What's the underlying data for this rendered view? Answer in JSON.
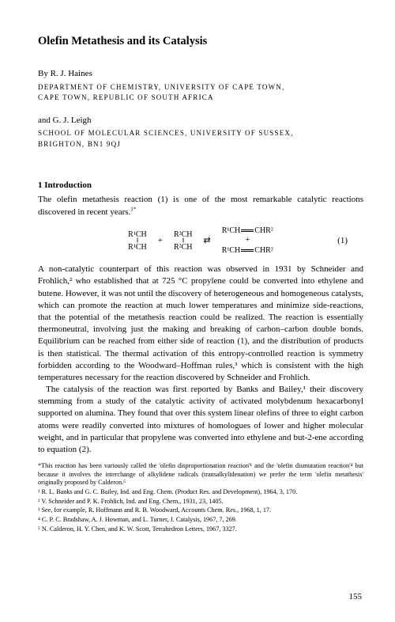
{
  "title": "Olefin Metathesis and its Catalysis",
  "authors": [
    {
      "byline": "By R. J. Haines",
      "affiliation_lines": [
        "DEPARTMENT OF CHEMISTRY, UNIVERSITY OF CAPE TOWN,",
        "CAPE TOWN, REPUBLIC OF SOUTH AFRICA"
      ]
    },
    {
      "byline": "and G. J. Leigh",
      "affiliation_lines": [
        "SCHOOL OF MOLECULAR SCIENCES, UNIVERSITY OF SUSSEX,",
        "BRIGHTON, BN1 9QJ"
      ]
    }
  ],
  "section": {
    "heading": "1 Introduction",
    "para1": "The olefin metathesis reaction (1) is one of the most remarkable catalytic reactions discovered in recent years.",
    "para1_sup": "1*",
    "equation": {
      "reactant1_top": "R¹CH",
      "reactant1_bot": "R¹CH",
      "reactant2_top": "R²CH",
      "reactant2_bot": "R²CH",
      "product_top_l": "R¹CH",
      "product_top_r": "CHR²",
      "product_bot_l": "R¹CH",
      "product_bot_r": "CHR²",
      "number": "(1)"
    },
    "para2": "A non-catalytic counterpart of this reaction was observed in 1931 by Schneider and Frohlich,² who established that at 725 °C propylene could be converted into ethylene and butene. However, it was not until the discovery of hetero­geneous and homogeneous catalysts, which can promote the reaction at much lower temperatures and minimize side-reactions, that the potential of the metathesis reaction could be realized. The reaction is essentially thermoneutral, involving just the making and breaking of carbon–carbon double bonds. Equilibrium can be reached from either side of reaction (1), and the distribution of products is then statistical. The thermal activation of this entropy-controlled reaction is symmetry forbidden according to the Woodward–Hoffman rules,³ which is consistent with the high temperatures necessary for the reaction dis­covered by Schneider and Frohlich.",
    "para3": "The catalysis of the reaction was first reported by Banks and Bailey,¹ their discovery stemming from a study of the catalytic activity of activated molyb­denum hexacarbonyl supported on alumina. They found that over this system linear olefins of three to eight carbon atoms were readily converted into mixtures of homologues of lower and higher molecular weight, and in particular that propylene was converted into ethylene and but-2-ene according to equation (2)."
  },
  "footnotes": [
    "*This reaction has been variously called the 'olefin disproportionation reaction'¹ and the 'olefin dismutation reaction'⁴ but because it involves the interchange of alkylidene radicals (transalkylidenation) we prefer the term 'olefin metathesis' originally proposed by Calderon.⁵",
    "¹ R. L. Banks and G. C. Bailey, Ind. and Eng. Chem. (Product Res. and Development), 1964, 3, 170.",
    "² V. Schneider and P. K. Frohlich, Ind. and Eng. Chem., 1931, 23, 1405.",
    "³ See, for example, R. Hoffmann and R. B. Woodward, Accounts Chem. Res., 1968, 1, 17.",
    "⁴ C. P. C. Bradshaw, A. J. Howman, and L. Turner, J. Catalysis, 1967, 7, 269.",
    "⁵ N. Calderon, H. Y. Chen, and K. W. Scott, Tetrahedron Letters, 1967, 3327."
  ],
  "page_number": "155"
}
